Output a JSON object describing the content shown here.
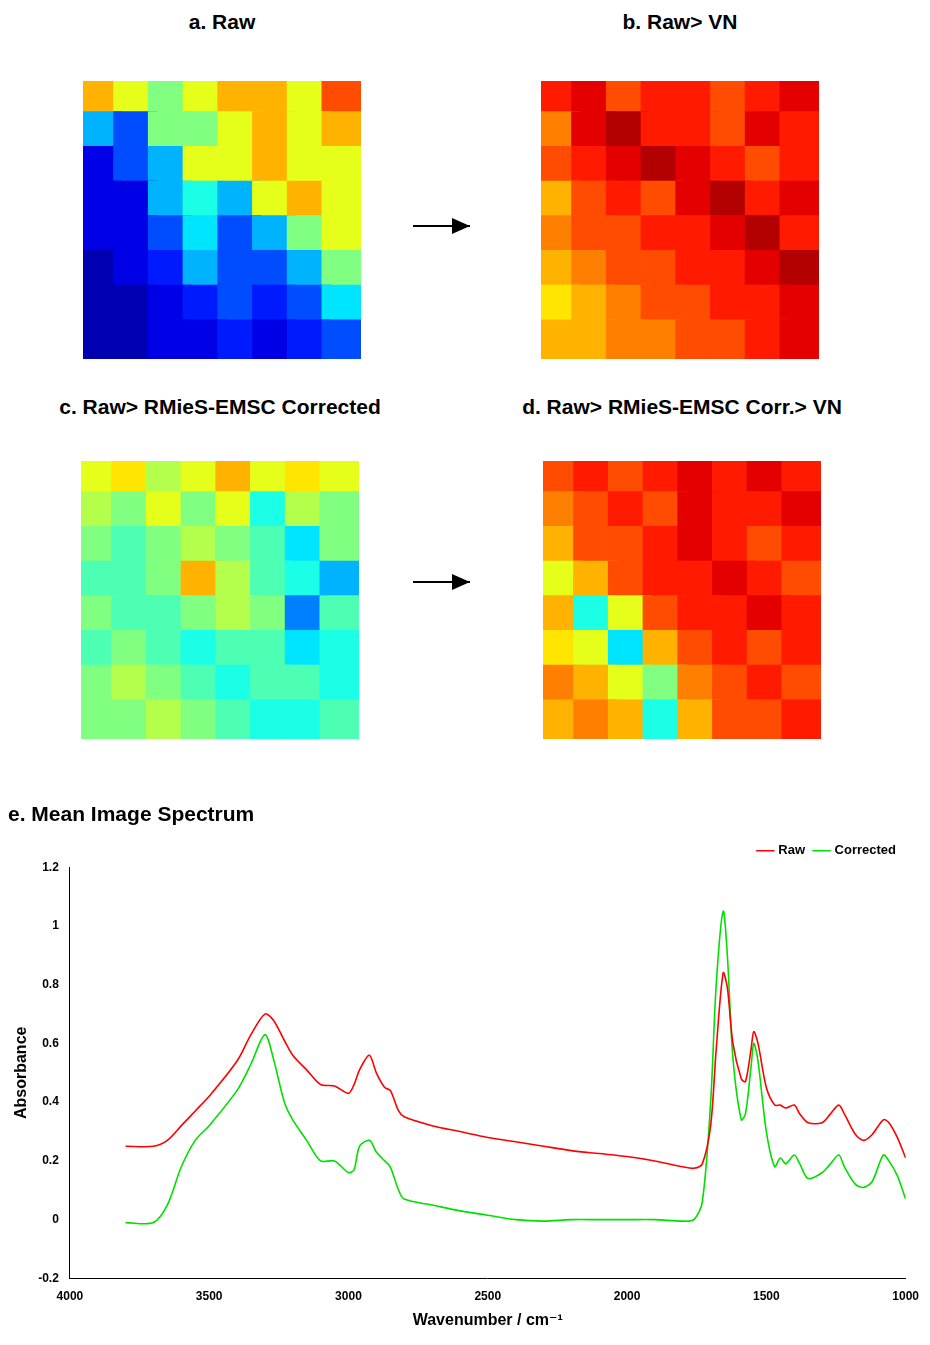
{
  "chart_data": [
    {
      "type": "heatmap",
      "title": "a. Raw",
      "tick_labels": false,
      "cells": [
        [
          0.7,
          0.6,
          0.5,
          0.6,
          0.7,
          0.7,
          0.6,
          0.8
        ],
        [
          0.3,
          0.2,
          0.5,
          0.5,
          0.6,
          0.7,
          0.6,
          0.7
        ],
        [
          0.1,
          0.2,
          0.3,
          0.6,
          0.6,
          0.7,
          0.6,
          0.6
        ],
        [
          0.1,
          0.1,
          0.3,
          0.4,
          0.3,
          0.6,
          0.7,
          0.6
        ],
        [
          0.1,
          0.1,
          0.2,
          0.35,
          0.2,
          0.3,
          0.5,
          0.6
        ],
        [
          0.05,
          0.1,
          0.15,
          0.3,
          0.2,
          0.2,
          0.3,
          0.5
        ],
        [
          0.05,
          0.05,
          0.1,
          0.15,
          0.2,
          0.15,
          0.2,
          0.35
        ],
        [
          0.05,
          0.05,
          0.1,
          0.1,
          0.15,
          0.1,
          0.15,
          0.2
        ]
      ]
    },
    {
      "type": "heatmap",
      "title": "b. Raw> VN",
      "tick_labels": false,
      "cells": [
        [
          0.85,
          0.9,
          0.8,
          0.85,
          0.85,
          0.8,
          0.85,
          0.9
        ],
        [
          0.75,
          0.9,
          0.95,
          0.85,
          0.85,
          0.8,
          0.9,
          0.85
        ],
        [
          0.8,
          0.85,
          0.9,
          0.95,
          0.9,
          0.85,
          0.8,
          0.85
        ],
        [
          0.7,
          0.8,
          0.85,
          0.8,
          0.9,
          0.95,
          0.85,
          0.9
        ],
        [
          0.75,
          0.8,
          0.8,
          0.85,
          0.85,
          0.9,
          0.95,
          0.85
        ],
        [
          0.7,
          0.75,
          0.8,
          0.8,
          0.85,
          0.85,
          0.9,
          0.95
        ],
        [
          0.65,
          0.7,
          0.75,
          0.8,
          0.8,
          0.85,
          0.85,
          0.9
        ],
        [
          0.7,
          0.7,
          0.75,
          0.75,
          0.8,
          0.8,
          0.85,
          0.9
        ]
      ]
    },
    {
      "type": "heatmap",
      "title": "c. Raw> RMieS-EMSC Corrected",
      "tick_labels": false,
      "cells": [
        [
          0.6,
          0.65,
          0.55,
          0.6,
          0.7,
          0.6,
          0.65,
          0.6
        ],
        [
          0.55,
          0.5,
          0.6,
          0.5,
          0.6,
          0.4,
          0.55,
          0.5
        ],
        [
          0.5,
          0.45,
          0.5,
          0.55,
          0.5,
          0.45,
          0.35,
          0.5
        ],
        [
          0.45,
          0.45,
          0.5,
          0.7,
          0.55,
          0.45,
          0.4,
          0.3
        ],
        [
          0.5,
          0.45,
          0.45,
          0.5,
          0.55,
          0.5,
          0.25,
          0.45
        ],
        [
          0.45,
          0.5,
          0.45,
          0.4,
          0.45,
          0.45,
          0.35,
          0.4
        ],
        [
          0.5,
          0.55,
          0.5,
          0.45,
          0.4,
          0.45,
          0.45,
          0.4
        ],
        [
          0.5,
          0.5,
          0.55,
          0.5,
          0.45,
          0.4,
          0.4,
          0.45
        ]
      ]
    },
    {
      "type": "heatmap",
      "title": "d. Raw> RMieS-EMSC Corr.> VN",
      "tick_labels": false,
      "cells": [
        [
          0.8,
          0.85,
          0.8,
          0.85,
          0.9,
          0.85,
          0.9,
          0.85
        ],
        [
          0.75,
          0.8,
          0.85,
          0.8,
          0.9,
          0.85,
          0.85,
          0.9
        ],
        [
          0.7,
          0.8,
          0.8,
          0.85,
          0.9,
          0.85,
          0.8,
          0.85
        ],
        [
          0.6,
          0.7,
          0.8,
          0.85,
          0.85,
          0.9,
          0.85,
          0.8
        ],
        [
          0.7,
          0.4,
          0.6,
          0.8,
          0.85,
          0.85,
          0.9,
          0.85
        ],
        [
          0.65,
          0.6,
          0.35,
          0.7,
          0.8,
          0.85,
          0.8,
          0.85
        ],
        [
          0.75,
          0.7,
          0.6,
          0.5,
          0.75,
          0.8,
          0.85,
          0.8
        ],
        [
          0.7,
          0.75,
          0.7,
          0.4,
          0.7,
          0.8,
          0.8,
          0.85
        ]
      ]
    },
    {
      "type": "line",
      "title": "e. Mean Image Spectrum",
      "x_label": "Wavenumber / cm⁻¹",
      "y_label": "Absorbance",
      "xlim": [
        4000,
        1000
      ],
      "xticks": [
        4000,
        3500,
        3000,
        2500,
        2000,
        1500,
        1000
      ],
      "ylim": [
        -0.2,
        1.2
      ],
      "yticks": [
        -0.2,
        0,
        0.2,
        0.4,
        0.6,
        0.8,
        1,
        1.2
      ],
      "grid": false,
      "legend": "top-right",
      "x": [
        3800,
        3700,
        3650,
        3600,
        3550,
        3500,
        3400,
        3350,
        3300,
        3270,
        3230,
        3200,
        3150,
        3100,
        3050,
        3000,
        2980,
        2960,
        2925,
        2900,
        2870,
        2850,
        2820,
        2800,
        2700,
        2600,
        2500,
        2400,
        2300,
        2200,
        2100,
        2000,
        1900,
        1800,
        1760,
        1730,
        1700,
        1680,
        1655,
        1640,
        1620,
        1590,
        1575,
        1555,
        1545,
        1530,
        1500,
        1470,
        1450,
        1430,
        1400,
        1380,
        1350,
        1300,
        1270,
        1240,
        1220,
        1180,
        1150,
        1120,
        1080,
        1060,
        1030,
        1000
      ],
      "series": [
        {
          "name": "Raw",
          "color": "#ff0000",
          "values": [
            0.25,
            0.25,
            0.27,
            0.32,
            0.37,
            0.42,
            0.54,
            0.63,
            0.7,
            0.68,
            0.61,
            0.56,
            0.51,
            0.46,
            0.455,
            0.43,
            0.46,
            0.51,
            0.56,
            0.5,
            0.45,
            0.44,
            0.37,
            0.35,
            0.32,
            0.3,
            0.28,
            0.265,
            0.25,
            0.235,
            0.225,
            0.215,
            0.2,
            0.18,
            0.175,
            0.19,
            0.32,
            0.58,
            0.84,
            0.79,
            0.6,
            0.48,
            0.47,
            0.58,
            0.64,
            0.6,
            0.45,
            0.39,
            0.39,
            0.38,
            0.39,
            0.36,
            0.33,
            0.33,
            0.36,
            0.39,
            0.36,
            0.29,
            0.27,
            0.29,
            0.34,
            0.33,
            0.28,
            0.21
          ]
        },
        {
          "name": "Corrected",
          "color": "#00e000",
          "values": [
            -0.01,
            -0.01,
            0.05,
            0.18,
            0.27,
            0.32,
            0.44,
            0.53,
            0.63,
            0.55,
            0.4,
            0.34,
            0.27,
            0.2,
            0.2,
            0.16,
            0.17,
            0.25,
            0.27,
            0.23,
            0.2,
            0.18,
            0.1,
            0.07,
            0.05,
            0.03,
            0.015,
            0.0,
            -0.005,
            0.0,
            0.0,
            0.0,
            0.0,
            -0.005,
            0.0,
            0.06,
            0.4,
            0.8,
            1.05,
            0.9,
            0.55,
            0.34,
            0.36,
            0.52,
            0.6,
            0.54,
            0.3,
            0.18,
            0.21,
            0.19,
            0.22,
            0.19,
            0.14,
            0.16,
            0.19,
            0.22,
            0.18,
            0.12,
            0.11,
            0.13,
            0.22,
            0.2,
            0.15,
            0.07
          ]
        }
      ]
    }
  ]
}
